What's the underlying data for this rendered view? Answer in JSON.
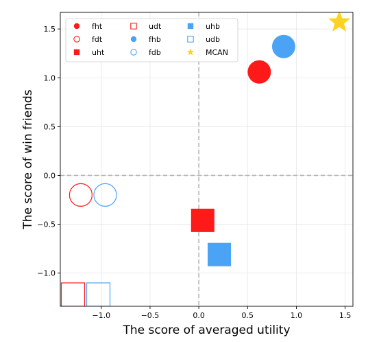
{
  "chart_data": {
    "type": "scatter",
    "xlabel": "The score of averaged utility",
    "ylabel": "The score of win friends",
    "xlim": [
      -1.42,
      1.58
    ],
    "ylim": [
      -1.34,
      1.67
    ],
    "x_ticks": [
      -1.0,
      -0.5,
      0.0,
      0.5,
      1.0,
      1.5
    ],
    "x_tick_labels": [
      "−1.0",
      "−0.5",
      "0.0",
      "0.5",
      "1.0",
      "1.5"
    ],
    "y_ticks": [
      -1.0,
      -0.5,
      0.0,
      0.5,
      1.0,
      1.5
    ],
    "y_tick_labels": [
      "−1.0",
      "−0.5",
      "0.0",
      "0.5",
      "1.0",
      "1.5"
    ],
    "grid": true,
    "reference_lines": {
      "x": 0,
      "y": 0,
      "style": "dashed"
    },
    "legend_position": "top-left",
    "legend_columns": 3,
    "colors": {
      "red": "#ff1a1a",
      "blue": "#4ba3f5",
      "gold": "#ffd21f"
    },
    "series": [
      {
        "name": "fht",
        "marker": "circle",
        "fill": "filled",
        "color": "#ff1a1a",
        "x": [
          0.62
        ],
        "y": [
          1.06
        ]
      },
      {
        "name": "fdt",
        "marker": "circle",
        "fill": "hollow",
        "color": "#ff1a1a",
        "x": [
          -1.21
        ],
        "y": [
          -0.2
        ]
      },
      {
        "name": "uht",
        "marker": "square",
        "fill": "filled",
        "color": "#ff1a1a",
        "x": [
          0.04
        ],
        "y": [
          -0.46
        ]
      },
      {
        "name": "udt",
        "marker": "square",
        "fill": "hollow",
        "color": "#ff1a1a",
        "x": [
          -1.29
        ],
        "y": [
          -1.22
        ]
      },
      {
        "name": "fhb",
        "marker": "circle",
        "fill": "filled",
        "color": "#4ba3f5",
        "x": [
          0.87
        ],
        "y": [
          1.32
        ]
      },
      {
        "name": "fdb",
        "marker": "circle",
        "fill": "hollow",
        "color": "#4ba3f5",
        "x": [
          -0.96
        ],
        "y": [
          -0.2
        ]
      },
      {
        "name": "uhb",
        "marker": "square",
        "fill": "filled",
        "color": "#4ba3f5",
        "x": [
          0.21
        ],
        "y": [
          -0.81
        ]
      },
      {
        "name": "udb",
        "marker": "square",
        "fill": "hollow",
        "color": "#4ba3f5",
        "x": [
          -1.03
        ],
        "y": [
          -1.22
        ]
      },
      {
        "name": "MCAN",
        "marker": "star",
        "fill": "filled",
        "color": "#ffd21f",
        "x": [
          1.44
        ],
        "y": [
          1.57
        ]
      }
    ]
  }
}
